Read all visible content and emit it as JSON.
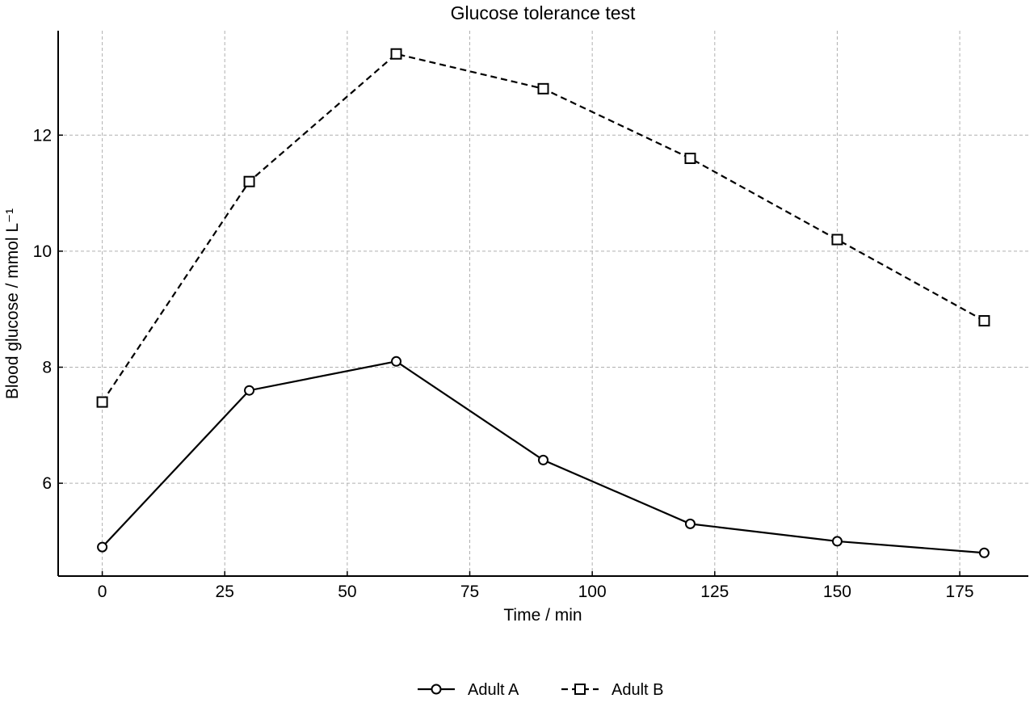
{
  "chart_data": {
    "type": "line",
    "title": "Glucose tolerance test",
    "xlabel": "Time / min",
    "ylabel": "Blood glucose / mmol L⁻¹",
    "xlim": [
      -9,
      189
    ],
    "ylim": [
      4.4,
      13.8
    ],
    "xticks": [
      0,
      25,
      50,
      75,
      100,
      125,
      150,
      175
    ],
    "yticks": [
      6,
      8,
      10,
      12
    ],
    "grid": true,
    "legend_position": "bottom-center",
    "x": [
      0,
      30,
      60,
      90,
      120,
      150,
      180
    ],
    "series": [
      {
        "name": "Adult A",
        "values": [
          4.9,
          7.6,
          8.1,
          6.4,
          5.3,
          5.0,
          4.8
        ],
        "marker": "circle",
        "line": "solid",
        "color": "#000000"
      },
      {
        "name": "Adult B",
        "values": [
          7.4,
          11.2,
          13.4,
          12.8,
          11.6,
          10.2,
          8.8
        ],
        "marker": "square",
        "line": "dashed",
        "color": "#000000"
      }
    ]
  }
}
